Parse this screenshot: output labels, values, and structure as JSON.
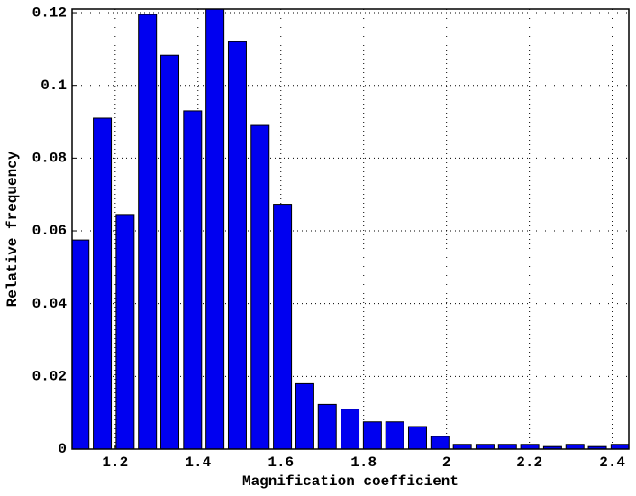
{
  "chart_data": {
    "type": "bar",
    "x_label": "Magnification coefficient",
    "y_label": "Relative frequency",
    "x": [
      1.115,
      1.169,
      1.224,
      1.278,
      1.332,
      1.387,
      1.441,
      1.495,
      1.55,
      1.604,
      1.658,
      1.712,
      1.767,
      1.821,
      1.875,
      1.93,
      1.984,
      2.038,
      2.093,
      2.147,
      2.201,
      2.256,
      2.31,
      2.364,
      2.419
    ],
    "values": [
      0.0575,
      0.091,
      0.0645,
      0.1195,
      0.1083,
      0.093,
      0.121,
      0.112,
      0.089,
      0.0673,
      0.018,
      0.0123,
      0.011,
      0.0075,
      0.0075,
      0.0062,
      0.0035,
      0.0013,
      0.0013,
      0.0013,
      0.0013,
      0.0007,
      0.0013,
      0.0007,
      0.0013
    ],
    "color": "#0000f0",
    "edge_color": "#000000",
    "xlim": [
      1.096,
      2.44
    ],
    "ylim": [
      0,
      0.121
    ],
    "xticks": [
      1.2,
      1.4,
      1.6,
      1.8,
      2,
      2.2,
      2.4
    ],
    "yticks": [
      0,
      0.02,
      0.04,
      0.06,
      0.08,
      0.1,
      0.12
    ],
    "grid": true
  }
}
